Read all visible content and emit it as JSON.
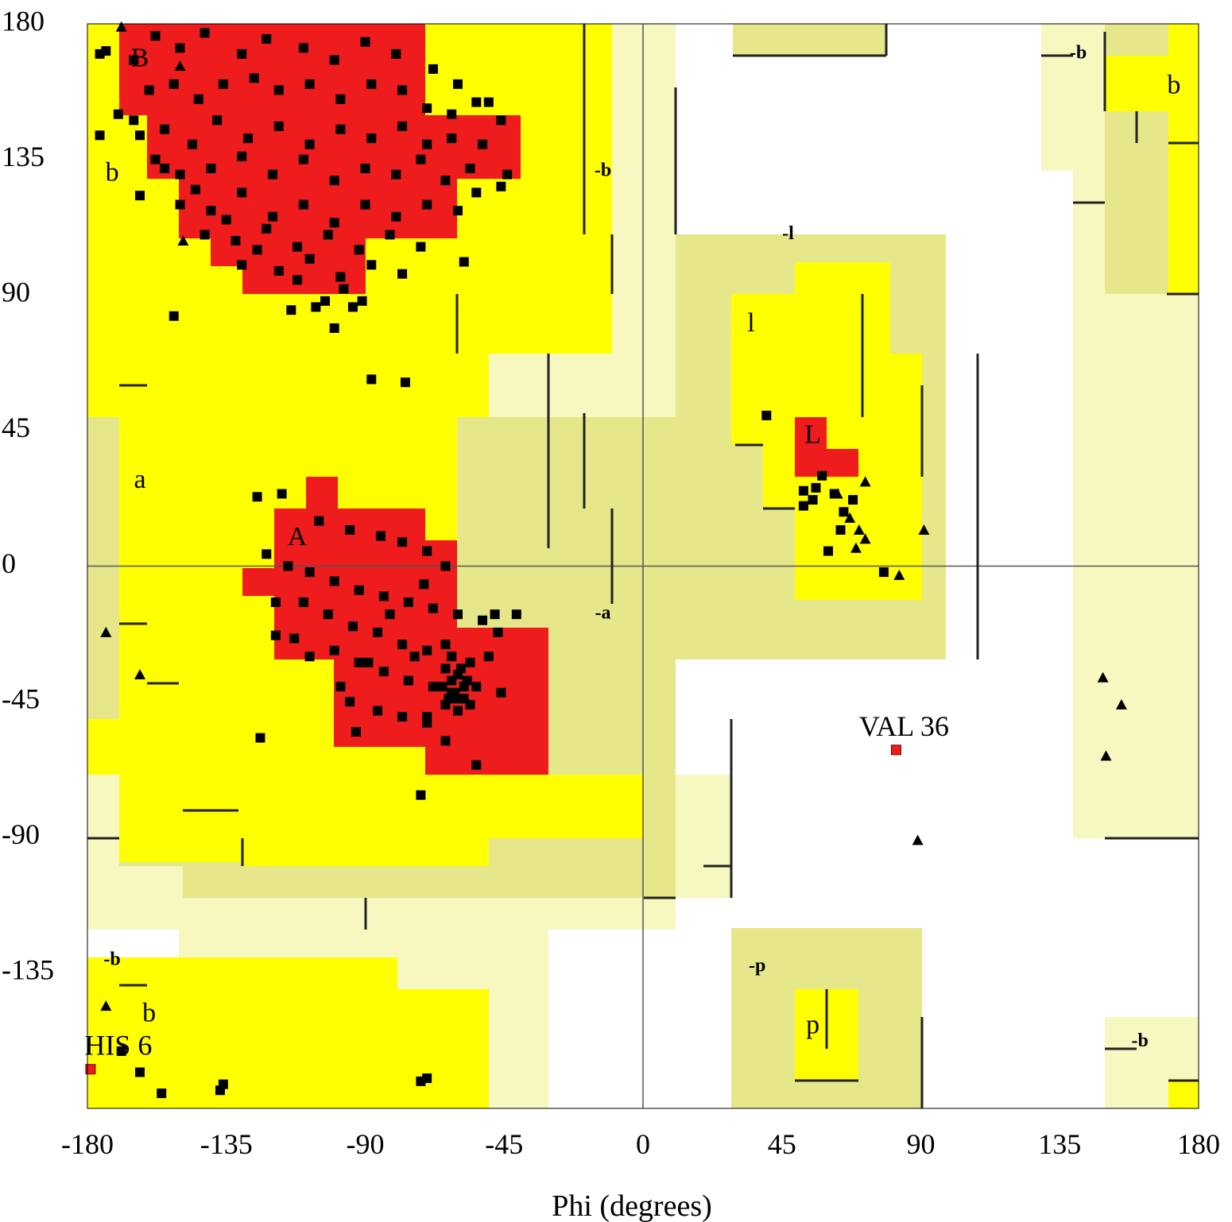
{
  "chart_data": {
    "type": "scatter",
    "title": "",
    "xlabel": "Phi (degrees)",
    "ylabel": "",
    "xlim": [
      -180,
      180
    ],
    "ylim": [
      -180,
      180
    ],
    "xticks": [
      -180,
      -135,
      -90,
      -45,
      0,
      45,
      90,
      135,
      180
    ],
    "yticks": [
      180,
      135,
      90,
      45,
      0,
      -45,
      -90,
      -135
    ],
    "colors": {
      "core": "#ee1c1c",
      "allowed": "#ffff00",
      "generous": "#e6e68a",
      "generous_light": "#f7f7c0",
      "disallowed": "#ffffff",
      "points": "#000000",
      "outlier": "#ee1c1c"
    },
    "region_labels": [
      {
        "text": "B",
        "phi": -163,
        "psi": 168
      },
      {
        "text": "b",
        "phi": -172,
        "psi": 130
      },
      {
        "text": "a",
        "phi": -163,
        "psi": 28
      },
      {
        "text": "A",
        "phi": -112,
        "psi": 9
      },
      {
        "text": "-b",
        "phi": -13,
        "psi": 131
      },
      {
        "text": "-a",
        "phi": -13,
        "psi": -16
      },
      {
        "text": "-l",
        "phi": 47,
        "psi": 110
      },
      {
        "text": "l",
        "phi": 35,
        "psi": 80
      },
      {
        "text": "L",
        "phi": 55,
        "psi": 43
      },
      {
        "text": "-b",
        "phi": 141,
        "psi": 170
      },
      {
        "text": "b",
        "phi": 172,
        "psi": 159
      },
      {
        "text": "-b",
        "phi": -172,
        "psi": -131
      },
      {
        "text": "b",
        "phi": -160,
        "psi": -149
      },
      {
        "text": "-p",
        "phi": 37,
        "psi": -133
      },
      {
        "text": "p",
        "phi": 55,
        "psi": -153
      },
      {
        "text": "-b",
        "phi": 161,
        "psi": -158
      }
    ],
    "outliers": [
      {
        "label": "VAL 36",
        "phi": 82,
        "psi": -61
      },
      {
        "label": "HIS 6",
        "phi": -179,
        "psi": -167
      }
    ],
    "series": [
      {
        "marker": "square",
        "points": [
          [
            -174,
            171
          ],
          [
            -165,
            168
          ],
          [
            -158,
            176
          ],
          [
            -150,
            172
          ],
          [
            -142,
            177
          ],
          [
            -130,
            170
          ],
          [
            -122,
            175
          ],
          [
            -110,
            172
          ],
          [
            -100,
            168
          ],
          [
            -90,
            174
          ],
          [
            -80,
            170
          ],
          [
            -68,
            165
          ],
          [
            -60,
            160
          ],
          [
            -160,
            158
          ],
          [
            -152,
            160
          ],
          [
            -144,
            155
          ],
          [
            -136,
            160
          ],
          [
            -126,
            162
          ],
          [
            -118,
            158
          ],
          [
            -108,
            160
          ],
          [
            -98,
            155
          ],
          [
            -88,
            160
          ],
          [
            -78,
            158
          ],
          [
            -70,
            152
          ],
          [
            -62,
            150
          ],
          [
            -54,
            154
          ],
          [
            -50,
            154
          ],
          [
            -165,
            148
          ],
          [
            -155,
            145
          ],
          [
            -146,
            140
          ],
          [
            -138,
            148
          ],
          [
            -128,
            142
          ],
          [
            -118,
            146
          ],
          [
            -108,
            140
          ],
          [
            -98,
            145
          ],
          [
            -88,
            142
          ],
          [
            -78,
            146
          ],
          [
            -70,
            140
          ],
          [
            -62,
            142
          ],
          [
            -52,
            140
          ],
          [
            -46,
            148
          ],
          [
            -158,
            135
          ],
          [
            -150,
            130
          ],
          [
            -140,
            132
          ],
          [
            -130,
            136
          ],
          [
            -120,
            130
          ],
          [
            -110,
            135
          ],
          [
            -100,
            128
          ],
          [
            -90,
            132
          ],
          [
            -80,
            130
          ],
          [
            -72,
            135
          ],
          [
            -64,
            128
          ],
          [
            -56,
            132
          ],
          [
            -46,
            126
          ],
          [
            -44,
            130
          ],
          [
            -163,
            123
          ],
          [
            -150,
            120
          ],
          [
            -140,
            118
          ],
          [
            -130,
            124
          ],
          [
            -120,
            116
          ],
          [
            -110,
            120
          ],
          [
            -100,
            114
          ],
          [
            -90,
            120
          ],
          [
            -80,
            116
          ],
          [
            -70,
            120
          ],
          [
            -60,
            118
          ],
          [
            -54,
            124
          ],
          [
            -142,
            110
          ],
          [
            -132,
            108
          ],
          [
            -122,
            112
          ],
          [
            -112,
            106
          ],
          [
            -102,
            110
          ],
          [
            -92,
            105
          ],
          [
            -82,
            110
          ],
          [
            -72,
            106
          ],
          [
            -130,
            100
          ],
          [
            -118,
            98
          ],
          [
            -108,
            102
          ],
          [
            -98,
            96
          ],
          [
            -88,
            100
          ],
          [
            -78,
            97
          ],
          [
            -58,
            101
          ],
          [
            -163,
            143
          ],
          [
            -176,
            143
          ],
          [
            -176,
            170
          ],
          [
            -170,
            150
          ],
          [
            -155,
            132
          ],
          [
            -145,
            125
          ],
          [
            -135,
            115
          ],
          [
            -125,
            105
          ],
          [
            -112,
            95
          ],
          [
            -103,
            88
          ],
          [
            -97,
            92
          ],
          [
            -94,
            86
          ],
          [
            -91,
            88
          ],
          [
            -106,
            86
          ],
          [
            -114,
            85
          ],
          [
            -152,
            83
          ],
          [
            -100,
            79
          ],
          [
            -88,
            62
          ],
          [
            -77,
            61
          ],
          [
            -125,
            23
          ],
          [
            -117,
            24
          ],
          [
            -105,
            15
          ],
          [
            -95,
            12
          ],
          [
            -85,
            10
          ],
          [
            -78,
            8
          ],
          [
            -70,
            5
          ],
          [
            -64,
            0
          ],
          [
            -122,
            4
          ],
          [
            -115,
            0
          ],
          [
            -108,
            -2
          ],
          [
            -100,
            -5
          ],
          [
            -92,
            -8
          ],
          [
            -84,
            -10
          ],
          [
            -76,
            -12
          ],
          [
            -68,
            -14
          ],
          [
            -60,
            -16
          ],
          [
            -52,
            -18
          ],
          [
            -48,
            -16
          ],
          [
            -110,
            -12
          ],
          [
            -102,
            -16
          ],
          [
            -94,
            -20
          ],
          [
            -86,
            -22
          ],
          [
            -78,
            -26
          ],
          [
            -70,
            -28
          ],
          [
            -62,
            -30
          ],
          [
            -56,
            -32
          ],
          [
            -50,
            -30
          ],
          [
            -100,
            -28
          ],
          [
            -92,
            -32
          ],
          [
            -84,
            -35
          ],
          [
            -76,
            -38
          ],
          [
            -68,
            -40
          ],
          [
            -62,
            -42
          ],
          [
            -58,
            -44
          ],
          [
            -54,
            -40
          ],
          [
            -46,
            -42
          ],
          [
            -95,
            -45
          ],
          [
            -86,
            -48
          ],
          [
            -78,
            -50
          ],
          [
            -70,
            -50
          ],
          [
            -64,
            -46
          ],
          [
            -60,
            -48
          ],
          [
            -56,
            -46
          ],
          [
            -60,
            -36
          ],
          [
            -62,
            -38
          ],
          [
            -64,
            -34
          ],
          [
            -58,
            -40
          ],
          [
            -61,
            -42
          ],
          [
            -59,
            -34
          ],
          [
            -63,
            -44
          ],
          [
            -57,
            -38
          ],
          [
            -65,
            -40
          ],
          [
            -60,
            -44
          ],
          [
            -89,
            -32
          ],
          [
            -98,
            -40
          ],
          [
            -93,
            -55
          ],
          [
            -113,
            -24
          ],
          [
            -119,
            -12
          ],
          [
            -119,
            -23
          ],
          [
            -108,
            -30
          ],
          [
            -74,
            -30
          ],
          [
            -70,
            -52
          ],
          [
            -64,
            -58
          ],
          [
            -54,
            -66
          ],
          [
            -41,
            -16
          ],
          [
            -47,
            -22
          ],
          [
            -64,
            -26
          ],
          [
            -82,
            -16
          ],
          [
            -71,
            -6
          ],
          [
            -124,
            -57
          ],
          [
            -72,
            -76
          ],
          [
            -169,
            -161
          ],
          [
            -163,
            -168
          ],
          [
            -156,
            -175
          ],
          [
            -137,
            -174
          ],
          [
            -136,
            -172
          ],
          [
            -72,
            -171
          ],
          [
            -70,
            -170
          ],
          [
            40,
            50
          ],
          [
            52,
            25
          ],
          [
            55,
            22
          ],
          [
            58,
            30
          ],
          [
            62,
            24
          ],
          [
            65,
            18
          ],
          [
            68,
            22
          ],
          [
            60,
            5
          ],
          [
            78,
            -2
          ],
          [
            52,
            20
          ],
          [
            56,
            26
          ],
          [
            64,
            12
          ]
        ]
      },
      {
        "marker": "triangle",
        "points": [
          [
            -169,
            179
          ],
          [
            -149,
            108
          ],
          [
            -150,
            166
          ],
          [
            -174,
            -22
          ],
          [
            -163,
            -36
          ],
          [
            -174,
            -146
          ],
          [
            67,
            16
          ],
          [
            70,
            12
          ],
          [
            72,
            9
          ],
          [
            69,
            6
          ],
          [
            72,
            28
          ],
          [
            63,
            24
          ],
          [
            83,
            -3
          ],
          [
            91,
            12
          ],
          [
            149,
            -37
          ],
          [
            155,
            -46
          ],
          [
            150,
            -63
          ],
          [
            89,
            -91
          ]
        ]
      }
    ]
  }
}
